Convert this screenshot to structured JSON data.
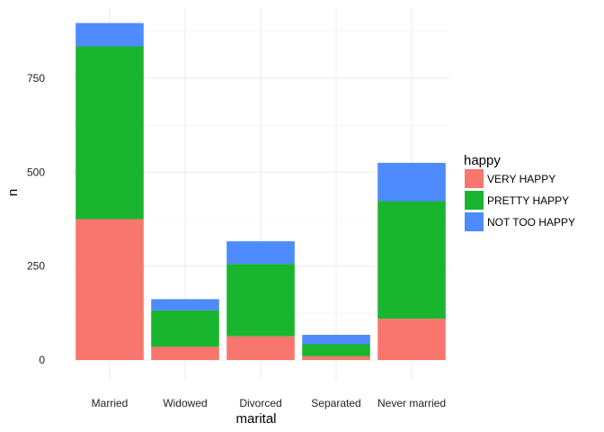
{
  "chart_data": {
    "type": "bar",
    "stacked": true,
    "xlabel": "marital",
    "ylabel": "n",
    "ylim": [
      0,
      900
    ],
    "yticks": [
      0,
      250,
      500,
      750
    ],
    "yticks_label": [
      "0",
      "250",
      "500",
      "750"
    ],
    "grid": true,
    "legend_position": "right",
    "legend_title": "happy",
    "categories": [
      "Married",
      "Widowed",
      "Divorced",
      "Separated",
      "Never married"
    ],
    "series": [
      {
        "name": "VERY HAPPY",
        "color": "#f8766d",
        "values": [
          375,
          35,
          63,
          10,
          110
        ]
      },
      {
        "name": "PRETTY HAPPY",
        "color": "#1ab52e",
        "values": [
          460,
          97,
          193,
          32,
          313
        ]
      },
      {
        "name": "NOT TOO HAPPY",
        "color": "#4d8bff",
        "values": [
          62,
          30,
          60,
          25,
          102
        ]
      }
    ]
  }
}
